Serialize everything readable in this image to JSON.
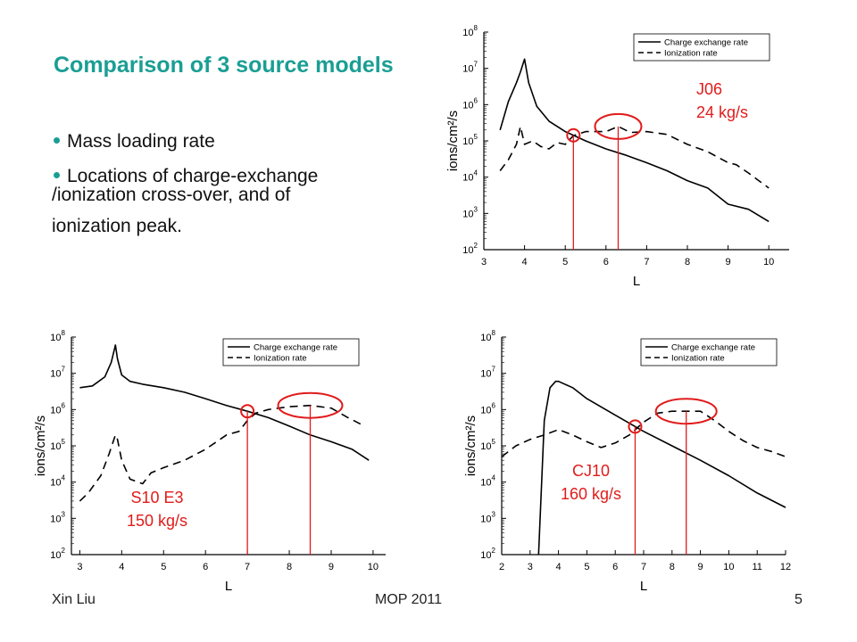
{
  "slide": {
    "title": "Comparison of 3 source models",
    "bullets": [
      {
        "text": "Mass loading rate"
      },
      {
        "text": "Locations of charge-exchange",
        "continuation": [
          "/ionization cross-over, and of",
          "ionization peak."
        ]
      }
    ]
  },
  "footer": {
    "author": "Xin Liu",
    "conference": "MOP 2011",
    "page": "5"
  },
  "colors": {
    "title": "#1a9e94",
    "annotation": "#e11b1b",
    "series": "#000000"
  },
  "chart_data": [
    {
      "id": "J06",
      "type": "line",
      "xlabel": "L",
      "ylabel": "ions/cm²/s",
      "yscale": "log",
      "xlim": [
        3,
        10.5
      ],
      "ylim": [
        100,
        100000000
      ],
      "xticks": [
        "3",
        "4",
        "5",
        "6",
        "7",
        "8",
        "9",
        "10"
      ],
      "yticks": [
        "10^2",
        "10^3",
        "10^4",
        "10^5",
        "10^6",
        "10^7",
        "10^8"
      ],
      "legend": [
        "Charge exchange rate",
        "Ionization rate"
      ],
      "series": [
        {
          "name": "Charge exchange rate",
          "style": "solid",
          "x": [
            3.4,
            3.6,
            3.8,
            3.9,
            4.0,
            4.1,
            4.3,
            4.6,
            5.0,
            5.5,
            6.0,
            6.5,
            7.0,
            7.5,
            8.0,
            8.5,
            9.0,
            9.5,
            10.0
          ],
          "y": [
            200000,
            1200000,
            4000000,
            8000000,
            18000000,
            4000000,
            900000,
            350000,
            180000,
            100000,
            60000,
            40000,
            25000,
            15000,
            8000,
            5000,
            1800,
            1300,
            600
          ]
        },
        {
          "name": "Ionization rate",
          "style": "dashed",
          "x": [
            3.4,
            3.6,
            3.8,
            3.9,
            4.0,
            4.2,
            4.4,
            4.6,
            4.8,
            5.0,
            5.2,
            5.5,
            6.0,
            6.3,
            6.6,
            7.0,
            7.5,
            8.0,
            8.5,
            9.0,
            9.2,
            9.5,
            10.0
          ],
          "y": [
            15000,
            30000,
            80000,
            250000,
            80000,
            100000,
            70000,
            60000,
            90000,
            80000,
            140000,
            180000,
            180000,
            250000,
            170000,
            180000,
            150000,
            80000,
            50000,
            25000,
            22000,
            13000,
            5000
          ]
        }
      ],
      "annotations": [
        {
          "text": "J06",
          "lines": [
            "J06",
            "24 kg/s"
          ]
        }
      ],
      "markers": {
        "crossover_x": 5.2,
        "peak_x": 6.3
      }
    },
    {
      "id": "S10 E3",
      "type": "line",
      "xlabel": "L",
      "ylabel": "ions/cm²/s",
      "yscale": "log",
      "xlim": [
        2.8,
        10.3
      ],
      "ylim": [
        100,
        100000000
      ],
      "xticks": [
        "3",
        "4",
        "5",
        "6",
        "7",
        "8",
        "9",
        "10"
      ],
      "yticks": [
        "10^2",
        "10^3",
        "10^4",
        "10^5",
        "10^6",
        "10^7",
        "10^8"
      ],
      "legend": [
        "Charge exchange rate",
        "Ionization rate"
      ],
      "series": [
        {
          "name": "Charge exchange rate",
          "style": "solid",
          "x": [
            3.0,
            3.3,
            3.6,
            3.75,
            3.85,
            3.9,
            4.0,
            4.2,
            4.5,
            5.0,
            5.5,
            6.0,
            6.5,
            7.0,
            7.5,
            8.0,
            8.5,
            9.0,
            9.5,
            9.9
          ],
          "y": [
            4000000,
            4500000,
            8000000,
            20000000,
            60000000,
            25000000,
            9000000,
            6000000,
            5000000,
            4000000,
            3000000,
            2000000,
            1300000,
            900000,
            600000,
            350000,
            200000,
            130000,
            80000,
            40000
          ]
        },
        {
          "name": "Ionization rate",
          "style": "dashed",
          "x": [
            3.0,
            3.2,
            3.5,
            3.7,
            3.85,
            3.9,
            4.0,
            4.2,
            4.5,
            4.7,
            5.0,
            5.5,
            6.0,
            6.5,
            6.8,
            7.0,
            7.2,
            7.5,
            8.0,
            8.5,
            9.0,
            9.4,
            9.8
          ],
          "y": [
            3000,
            5000,
            15000,
            60000,
            200000,
            150000,
            40000,
            12000,
            9000,
            18000,
            25000,
            40000,
            80000,
            200000,
            250000,
            500000,
            800000,
            1000000,
            1200000,
            1300000,
            1100000,
            600000,
            350000
          ]
        }
      ],
      "annotations": [
        {
          "text": "S10 E3",
          "lines": [
            "S10 E3",
            "150 kg/s"
          ]
        }
      ],
      "markers": {
        "crossover_x": 7.0,
        "peak_x": 8.5
      }
    },
    {
      "id": "CJ10",
      "type": "line",
      "xlabel": "L",
      "ylabel": "ions/cm²/s",
      "yscale": "log",
      "xlim": [
        2,
        12
      ],
      "ylim": [
        100,
        100000000
      ],
      "xticks": [
        "2",
        "3",
        "4",
        "5",
        "6",
        "7",
        "8",
        "9",
        "10",
        "11",
        "12"
      ],
      "yticks": [
        "10^2",
        "10^3",
        "10^4",
        "10^5",
        "10^6",
        "10^7",
        "10^8"
      ],
      "legend": [
        "Charge exchange rate",
        "Ionization rate"
      ],
      "series": [
        {
          "name": "Charge exchange rate",
          "style": "solid",
          "x": [
            3.3,
            3.5,
            3.7,
            3.9,
            4.0,
            4.5,
            5.0,
            6.0,
            7.0,
            8.0,
            9.0,
            10.0,
            11.0,
            12.0
          ],
          "y": [
            100,
            500000,
            4000000,
            6000000,
            6000000,
            4000000,
            2000000,
            700000,
            250000,
            100000,
            40000,
            15000,
            5000,
            2000
          ]
        },
        {
          "name": "Ionization rate",
          "style": "dashed",
          "x": [
            2.0,
            2.5,
            3.0,
            3.5,
            4.0,
            4.5,
            5.0,
            5.5,
            6.0,
            6.5,
            7.0,
            7.5,
            8.0,
            9.0,
            9.5,
            10.0,
            10.5,
            11.0,
            11.5,
            12.0
          ],
          "y": [
            50000,
            100000,
            150000,
            200000,
            280000,
            200000,
            130000,
            90000,
            120000,
            200000,
            450000,
            800000,
            900000,
            900000,
            500000,
            250000,
            140000,
            90000,
            70000,
            50000
          ]
        }
      ],
      "annotations": [
        {
          "text": "CJ10",
          "lines": [
            "CJ10",
            "160 kg/s"
          ]
        }
      ],
      "markers": {
        "crossover_x": 6.7,
        "peak_x": 8.5
      }
    }
  ]
}
